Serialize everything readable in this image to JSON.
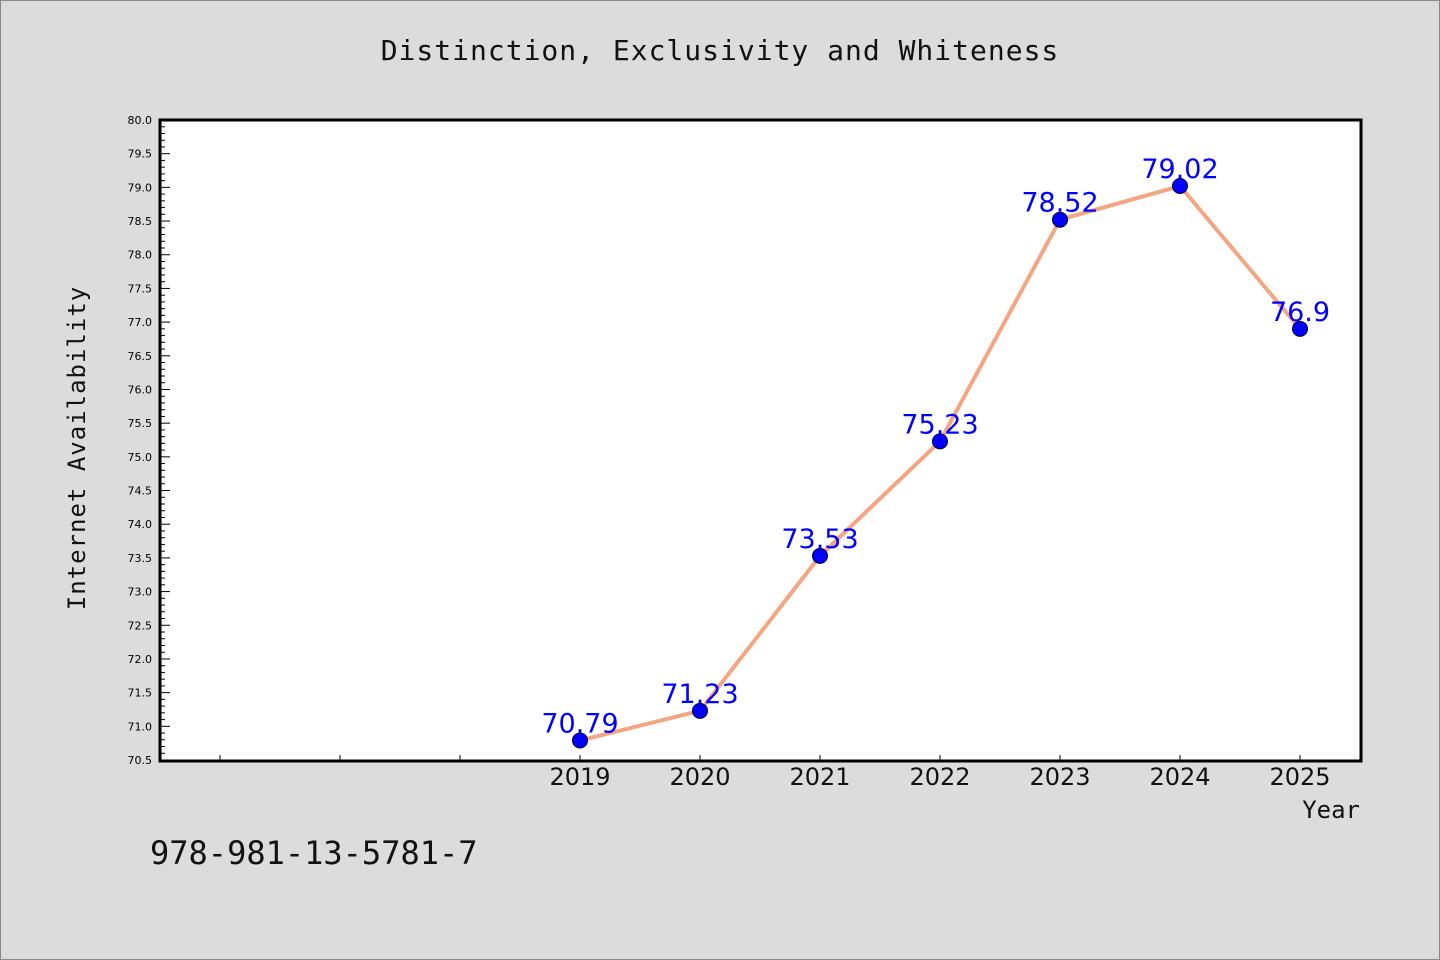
{
  "chart_data": {
    "type": "line",
    "title": "Distinction, Exclusivity and Whiteness",
    "xlabel": "Year",
    "ylabel": "Internet Availability",
    "x": [
      "2019",
      "2020",
      "2021",
      "2022",
      "2023",
      "2024",
      "2025"
    ],
    "values": [
      70.79,
      71.23,
      73.53,
      75.23,
      78.52,
      79.02,
      76.9
    ],
    "data_labels": [
      "70.79",
      "71.23",
      "73.53",
      "75.23",
      "78.52",
      "79.02",
      "76.9"
    ],
    "ylim": [
      70.5,
      80.0
    ],
    "ytick_labels": [
      "70.5",
      "71.0",
      "71.5",
      "72.0",
      "72.5",
      "73.0",
      "73.5",
      "74.0",
      "74.5",
      "75.0",
      "75.5",
      "76.0",
      "76.5",
      "77.0",
      "77.5",
      "78.0",
      "78.5",
      "79.0",
      "79.5",
      "80.0"
    ],
    "line_color": "#f4a582",
    "marker_color": "#0000ff",
    "label_color": "#0000ff",
    "grid": false,
    "legend": "none"
  },
  "footer_text": "978-981-13-5781-7"
}
